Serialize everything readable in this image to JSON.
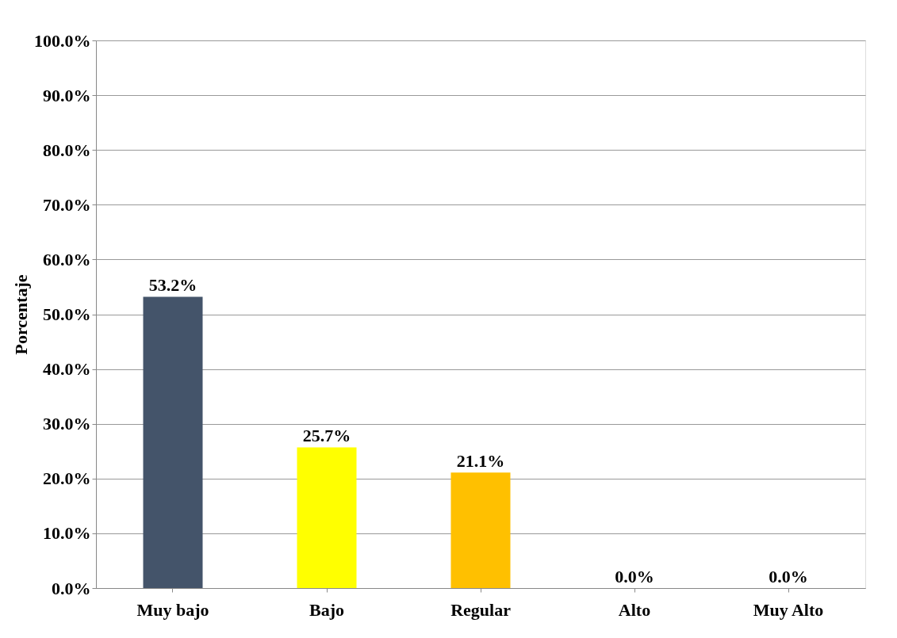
{
  "chart_data": {
    "type": "bar",
    "ylabel": "Porcentaje",
    "categories": [
      "Muy bajo",
      "Bajo",
      "Regular",
      "Alto",
      "Muy Alto"
    ],
    "values": [
      53.2,
      25.7,
      21.1,
      0.0,
      0.0
    ],
    "colors": [
      "#44546a",
      "#ffff00",
      "#ffc000",
      "#6b7f94",
      "#c55a11"
    ],
    "value_labels": [
      "53.2%",
      "25.7%",
      "21.1%",
      "0.0%",
      "0.0%"
    ],
    "ylim": [
      0,
      100
    ],
    "yticks": [
      {
        "value": 0,
        "label": "0.0%"
      },
      {
        "value": 10,
        "label": "10.0%"
      },
      {
        "value": 20,
        "label": "20.0%"
      },
      {
        "value": 30,
        "label": "30.0%"
      },
      {
        "value": 40,
        "label": "40.0%"
      },
      {
        "value": 50,
        "label": "50.0%"
      },
      {
        "value": 60,
        "label": "60.0%"
      },
      {
        "value": 70,
        "label": "70.0%"
      },
      {
        "value": 80,
        "label": "80.0%"
      },
      {
        "value": 90,
        "label": "90.0%"
      },
      {
        "value": 100,
        "label": "100.0%"
      }
    ],
    "grid": "y",
    "legend": false
  }
}
